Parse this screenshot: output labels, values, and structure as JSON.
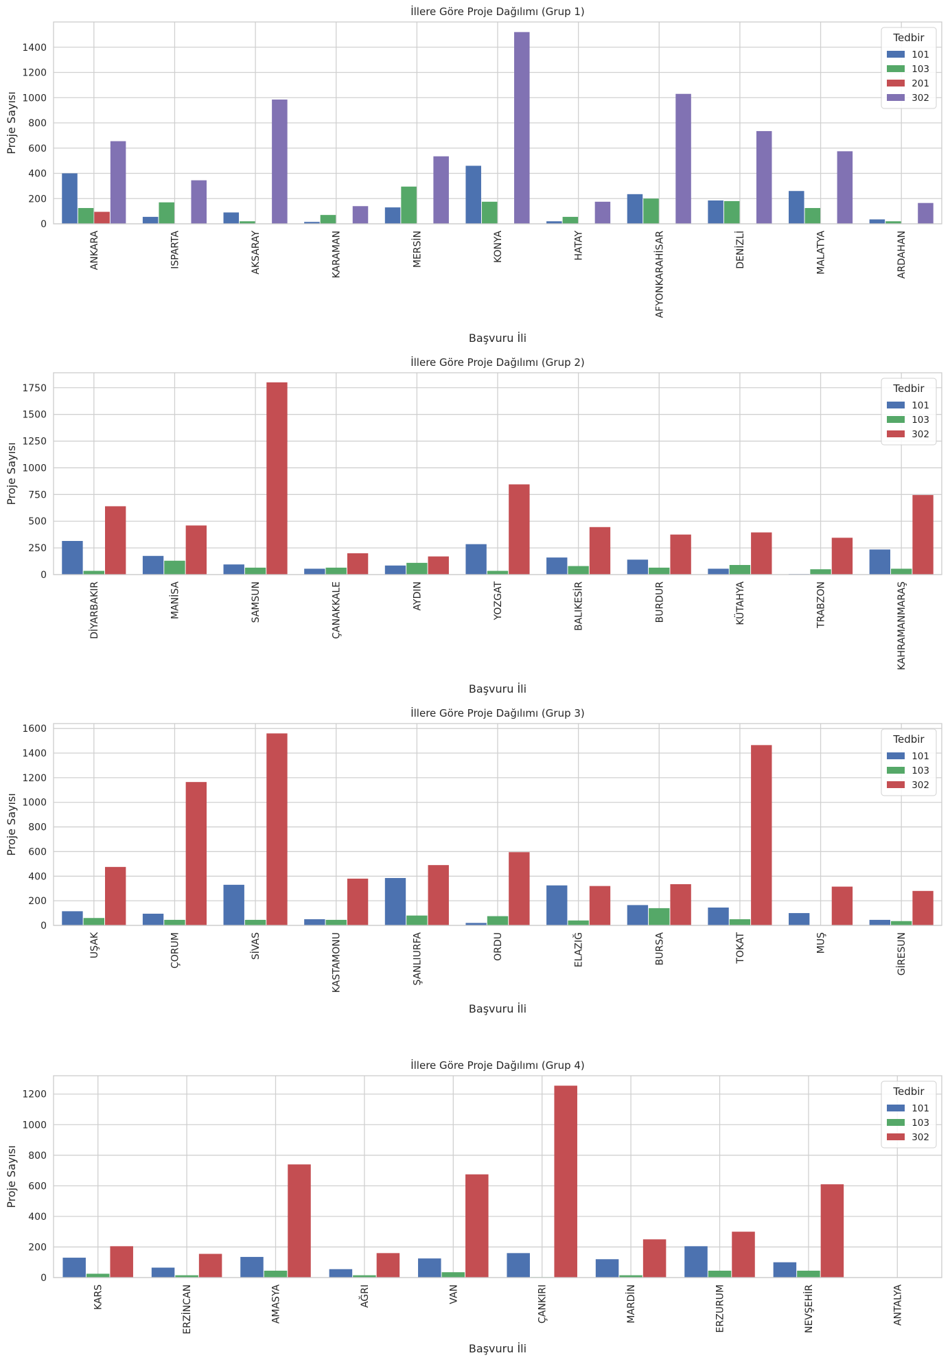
{
  "chart_data": [
    {
      "type": "bar",
      "title": "İllere Göre Proje Dağılımı (Grup 1)",
      "xlabel": "Başvuru İli",
      "ylabel": "Proje Sayısı",
      "ylim": [
        0,
        1600
      ],
      "yticks": [
        0,
        200,
        400,
        600,
        800,
        1000,
        1200,
        1400
      ],
      "legend_title": "Tedbir",
      "legend_position": "top-right",
      "categories": [
        "ANKARA",
        "ISPARTA",
        "AKSARAY",
        "KARAMAN",
        "MERSİN",
        "KONYA",
        "HATAY",
        "AFYONKARAHİSAR",
        "DENİZLİ",
        "MALATYA",
        "ARDAHAN"
      ],
      "series": [
        {
          "name": "101",
          "color": "#4c72b0",
          "values": [
            400,
            55,
            90,
            15,
            130,
            460,
            20,
            235,
            185,
            260,
            35
          ]
        },
        {
          "name": "103",
          "color": "#55a868",
          "values": [
            125,
            170,
            20,
            70,
            295,
            175,
            55,
            200,
            180,
            125,
            20
          ]
        },
        {
          "name": "201",
          "color": "#c44e52",
          "values": [
            95,
            0,
            0,
            0,
            0,
            0,
            0,
            0,
            0,
            0,
            0
          ]
        },
        {
          "name": "302",
          "color": "#8172b3",
          "values": [
            655,
            345,
            985,
            140,
            535,
            1520,
            175,
            1030,
            735,
            575,
            165
          ]
        }
      ]
    },
    {
      "type": "bar",
      "title": "İllere Göre Proje Dağılımı (Grup 2)",
      "xlabel": "Başvuru İli",
      "ylabel": "Proje Sayısı",
      "ylim": [
        0,
        1890
      ],
      "yticks": [
        0,
        250,
        500,
        750,
        1000,
        1250,
        1500,
        1750
      ],
      "legend_title": "Tedbir",
      "legend_position": "top-right",
      "categories": [
        "DİYARBAKIR",
        "MANİSA",
        "SAMSUN",
        "ÇANAKKALE",
        "AYDIN",
        "YOZGAT",
        "BALIKESİR",
        "BURDUR",
        "KÜTAHYA",
        "TRABZON",
        "KAHRAMANMARAŞ"
      ],
      "series": [
        {
          "name": "101",
          "color": "#4c72b0",
          "values": [
            315,
            175,
            95,
            55,
            85,
            285,
            160,
            140,
            55,
            5,
            235
          ]
        },
        {
          "name": "103",
          "color": "#55a868",
          "values": [
            35,
            130,
            65,
            65,
            110,
            35,
            80,
            65,
            90,
            50,
            55
          ]
        },
        {
          "name": "302",
          "color": "#c44e52",
          "values": [
            640,
            460,
            1800,
            200,
            170,
            845,
            445,
            375,
            395,
            345,
            745
          ]
        }
      ]
    },
    {
      "type": "bar",
      "title": "İllere Göre Proje Dağılımı (Grup 3)",
      "xlabel": "Başvuru İli",
      "ylabel": "Proje Sayısı",
      "ylim": [
        0,
        1640
      ],
      "yticks": [
        0,
        200,
        400,
        600,
        800,
        1000,
        1200,
        1400,
        1600
      ],
      "legend_title": "Tedbir",
      "legend_position": "top-right",
      "categories": [
        "UŞAK",
        "ÇORUM",
        "SİVAS",
        "KASTAMONU",
        "ŞANLIURFA",
        "ORDU",
        "ELAZIĞ",
        "BURSA",
        "TOKAT",
        "MUŞ",
        "GİRESUN"
      ],
      "series": [
        {
          "name": "101",
          "color": "#4c72b0",
          "values": [
            115,
            95,
            330,
            50,
            385,
            20,
            325,
            165,
            145,
            100,
            45
          ]
        },
        {
          "name": "103",
          "color": "#55a868",
          "values": [
            60,
            45,
            45,
            45,
            80,
            75,
            40,
            140,
            50,
            0,
            35
          ]
        },
        {
          "name": "302",
          "color": "#c44e52",
          "values": [
            475,
            1165,
            1560,
            380,
            490,
            595,
            320,
            335,
            1465,
            315,
            280
          ]
        }
      ]
    },
    {
      "type": "bar",
      "title": "İllere Göre Proje Dağılımı (Grup 4)",
      "xlabel": "Başvuru İli",
      "ylabel": "Proje Sayısı",
      "ylim": [
        0,
        1320
      ],
      "yticks": [
        0,
        200,
        400,
        600,
        800,
        1000,
        1200
      ],
      "legend_title": "Tedbir",
      "legend_position": "top-right",
      "categories": [
        "KARS",
        "ERZİNCAN",
        "AMASYA",
        "AĞRI",
        "VAN",
        "ÇANKIRI",
        "MARDİN",
        "ERZURUM",
        "NEVŞEHİR",
        "ANTALYA"
      ],
      "series": [
        {
          "name": "101",
          "color": "#4c72b0",
          "values": [
            130,
            65,
            135,
            55,
            125,
            160,
            120,
            205,
            100,
            2
          ]
        },
        {
          "name": "103",
          "color": "#55a868",
          "values": [
            25,
            15,
            45,
            15,
            35,
            3,
            15,
            45,
            45,
            1
          ]
        },
        {
          "name": "302",
          "color": "#c44e52",
          "values": [
            205,
            155,
            740,
            160,
            675,
            1255,
            250,
            300,
            610,
            1
          ]
        }
      ]
    }
  ]
}
